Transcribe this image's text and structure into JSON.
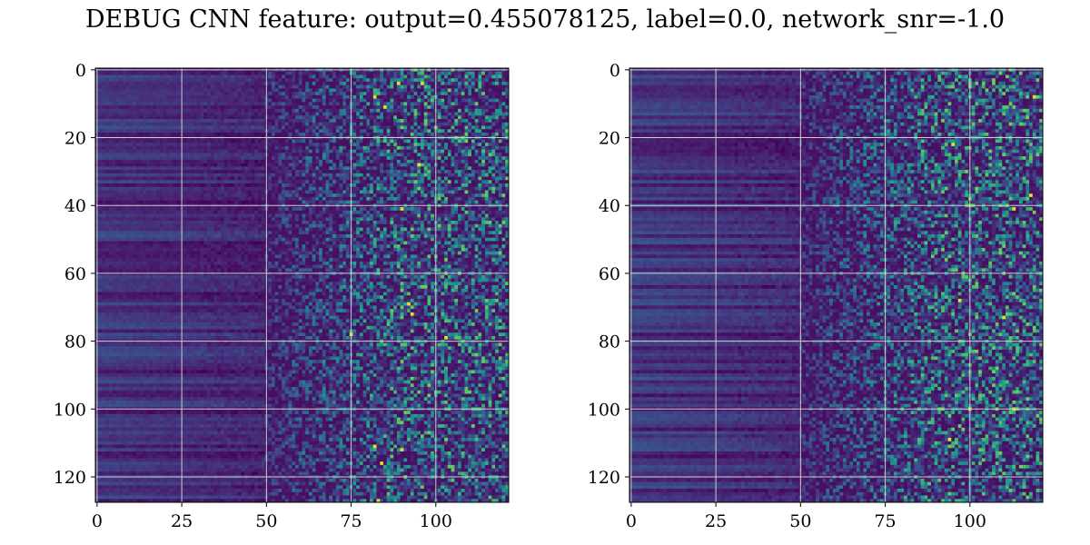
{
  "figure": {
    "suptitle": "DEBUG CNN feature: output=0.455078125, label=0.0, network_snr=-1.0"
  },
  "chart_data": [
    {
      "type": "heatmap",
      "title": "",
      "xlabel": "",
      "ylabel": "",
      "colormap": "viridis",
      "grid": true,
      "grid_color": "#cfcfcf",
      "x_range": [
        -0.5,
        121.5
      ],
      "y_range": [
        127.5,
        -0.5
      ],
      "x_ticks": [
        0,
        25,
        50,
        75,
        100
      ],
      "x_tick_labels": [
        "0",
        "25",
        "50",
        "75",
        "100"
      ],
      "y_ticks": [
        0,
        20,
        40,
        60,
        80,
        100,
        120
      ],
      "y_tick_labels": [
        "0",
        "20",
        "40",
        "60",
        "80",
        "100",
        "120"
      ],
      "grid_size": {
        "rows": 128,
        "cols": 122
      },
      "description": "Rows 0-127 × columns 0-121; left region (cols 0-50) shows horizontal streaks of low-to-medium values, right region (cols 50-121) is noisy with sparse high (yellow/green) cells concentrated beyond col 75.",
      "bright_cells": [
        [
          4,
          89
        ],
        [
          4,
          96
        ],
        [
          8,
          82
        ],
        [
          11,
          85
        ],
        [
          28,
          95
        ],
        [
          41,
          90
        ],
        [
          69,
          92
        ],
        [
          72,
          93
        ],
        [
          78,
          75
        ],
        [
          79,
          103
        ],
        [
          111,
          82
        ],
        [
          112,
          90
        ],
        [
          116,
          84
        ],
        [
          127,
          83
        ]
      ]
    },
    {
      "type": "heatmap",
      "title": "",
      "xlabel": "",
      "ylabel": "",
      "colormap": "viridis",
      "grid": true,
      "grid_color": "#cfcfcf",
      "x_range": [
        -0.5,
        121.5
      ],
      "y_range": [
        127.5,
        -0.5
      ],
      "x_ticks": [
        0,
        25,
        50,
        75,
        100
      ],
      "x_tick_labels": [
        "0",
        "25",
        "50",
        "75",
        "100"
      ],
      "y_ticks": [
        0,
        20,
        40,
        60,
        80,
        100,
        120
      ],
      "y_tick_labels": [
        "0",
        "20",
        "40",
        "60",
        "80",
        "100",
        "120"
      ],
      "grid_size": {
        "rows": 128,
        "cols": 122
      },
      "description": "Rows 0-127 × columns 0-121; left region shows faint horizontal streaks, right region (cols 60-121) noisy with sparse teal/green cells and a few yellow cells.",
      "bright_cells": [
        [
          8,
          119
        ],
        [
          22,
          95
        ],
        [
          37,
          118
        ],
        [
          41,
          113
        ],
        [
          68,
          97
        ],
        [
          73,
          110
        ],
        [
          100,
          100
        ],
        [
          100,
          113
        ],
        [
          109,
          94
        ]
      ]
    }
  ]
}
